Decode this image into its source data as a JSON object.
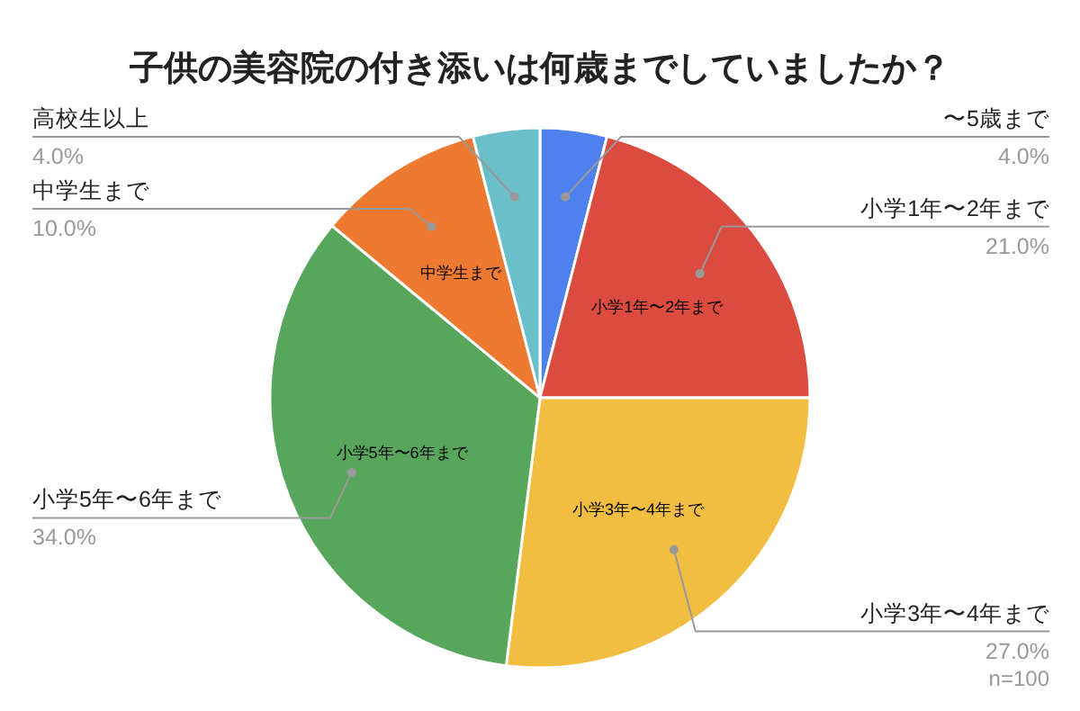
{
  "chart_data": {
    "type": "pie",
    "title": "子供の美容院の付き添いは何歳までしていましたか？",
    "categories": [
      "〜5歳まで",
      "小学1年〜2年まで",
      "小学3年〜4年まで",
      "小学5年〜6年まで",
      "中学生まで",
      "高校生以上"
    ],
    "values": [
      4,
      21,
      27,
      34,
      10,
      4
    ],
    "colors": [
      "#4e80ee",
      "#db4b3f",
      "#f2be42",
      "#58a65c",
      "#ee7a32",
      "#6bbfc9"
    ],
    "value_labels": [
      "4.0%",
      "21.0%",
      "27.0%",
      "34.0%",
      "10.0%",
      "4.0%"
    ],
    "annotations": [
      "n=100"
    ]
  }
}
